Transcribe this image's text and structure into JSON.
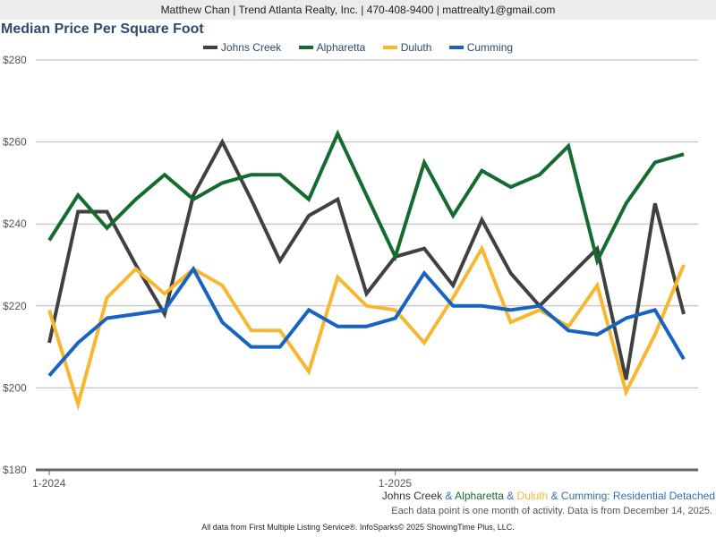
{
  "header": {
    "contact": "Matthew Chan | Trend Atlanta Realty, Inc. | 470-408-9400 | mattrealty1@gmail.com"
  },
  "chart_data": {
    "type": "line",
    "title": "Median Price Per Square Foot",
    "xlabel": "",
    "ylabel": "",
    "ylim": [
      180,
      280
    ],
    "yticks": [
      180,
      200,
      220,
      240,
      260,
      280
    ],
    "ytick_labels": [
      "$180",
      "$200",
      "$220",
      "$240",
      "$260",
      "$280"
    ],
    "x_count": 23,
    "xticks": [
      {
        "index": 0,
        "label": "1-2024"
      },
      {
        "index": 12,
        "label": "1-2025"
      }
    ],
    "grid": true,
    "legend": "top-center",
    "series": [
      {
        "name": "Johns Creek",
        "color": "#404040",
        "values": [
          211,
          243,
          243,
          230,
          218,
          247,
          260,
          246,
          231,
          242,
          246,
          223,
          232,
          234,
          225,
          241,
          228,
          220,
          227,
          234,
          202,
          245,
          218
        ]
      },
      {
        "name": "Alpharetta",
        "color": "#146b30",
        "values": [
          236,
          247,
          239,
          246,
          252,
          246,
          250,
          252,
          252,
          246,
          262,
          247,
          232,
          255,
          242,
          253,
          249,
          252,
          259,
          231,
          245,
          255,
          257
        ]
      },
      {
        "name": "Duluth",
        "color": "#f7b731",
        "values": [
          219,
          196,
          222,
          229,
          223,
          229,
          225,
          214,
          214,
          204,
          227,
          220,
          219,
          211,
          222,
          234,
          216,
          219,
          215,
          225,
          199,
          213,
          230
        ]
      },
      {
        "name": "Cumming",
        "color": "#1763c0",
        "values": [
          203,
          211,
          217,
          218,
          219,
          229,
          216,
          210,
          210,
          219,
          215,
          215,
          217,
          228,
          220,
          220,
          219,
          220,
          214,
          213,
          217,
          219,
          207
        ]
      }
    ]
  },
  "subtitle": {
    "parts": [
      "Johns Creek",
      " & ",
      "Alpharetta",
      " & ",
      "Duluth",
      " & ",
      "Cumming: Residential Detached"
    ],
    "colors": [
      "#333333",
      "#3a6fb0",
      "#146b30",
      "#3a6fb0",
      "#f7b731",
      "#3a6fb0",
      "#3a6fb0"
    ]
  },
  "note": "Each data point is one month of activity. Data is from December 14, 2025.",
  "footer": "All data from First Multiple Listing Service®. InfoSparks© 2025 ShowingTime Plus, LLC."
}
